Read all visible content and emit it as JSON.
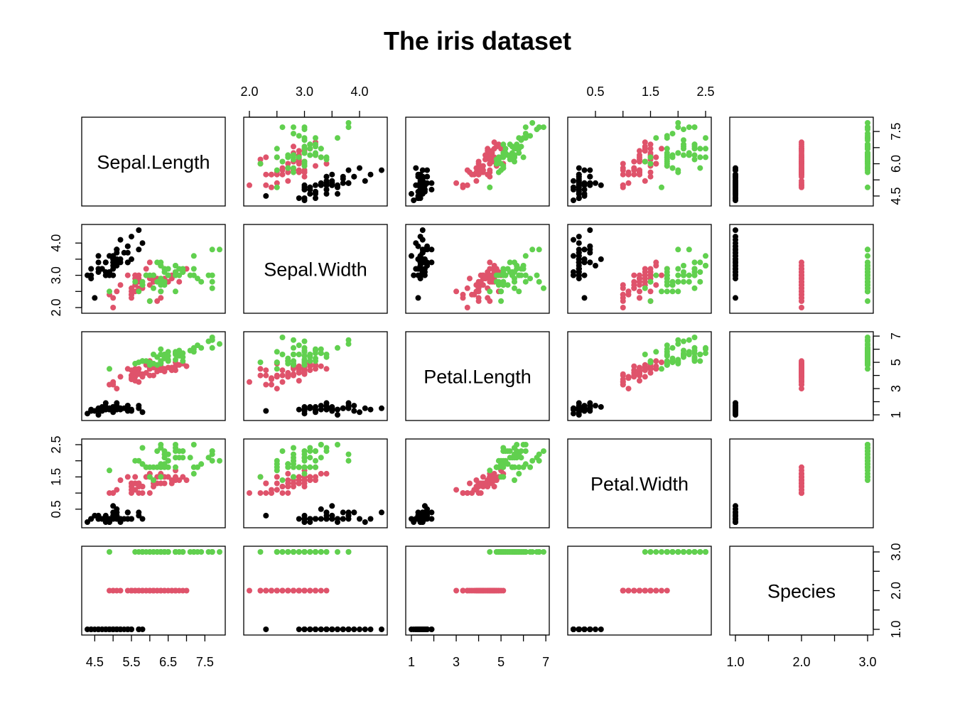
{
  "chart_data": {
    "type": "scatter",
    "subtype": "scatterplot-matrix",
    "title": "The iris dataset",
    "variables": [
      "Sepal.Length",
      "Sepal.Width",
      "Petal.Length",
      "Petal.Width",
      "Species"
    ],
    "colors": {
      "setosa": "#000000",
      "versicolor": "#DF536B",
      "virginica": "#61D04F"
    },
    "axes": {
      "Sepal.Length": {
        "range": [
          4.3,
          7.9
        ],
        "ticks": [
          "4.5",
          "5.5",
          "6.5",
          "7.5"
        ],
        "minor_ticks": [
          5.0,
          6.0,
          7.0
        ],
        "alt_ticks": [
          "4.5",
          "6.0",
          "7.5"
        ],
        "alt_minor_ticks": [
          5.25,
          6.75
        ]
      },
      "Sepal.Width": {
        "range": [
          2.0,
          4.4
        ],
        "ticks": [
          "2.0",
          "3.0",
          "4.0"
        ],
        "minor_ticks": [
          2.5,
          3.5
        ]
      },
      "Petal.Length": {
        "range": [
          1.0,
          6.9
        ],
        "ticks": [
          "1",
          "3",
          "5",
          "7"
        ],
        "minor_ticks": [
          2,
          4,
          6
        ]
      },
      "Petal.Width": {
        "range": [
          0.1,
          2.5
        ],
        "ticks": [
          "0.5",
          "1.5",
          "2.5"
        ],
        "minor_ticks": [
          1.0,
          2.0
        ]
      },
      "Species": {
        "range": [
          1,
          3
        ],
        "ticks": [
          "1.0",
          "2.0",
          "3.0"
        ],
        "minor_ticks": [
          1.5,
          2.5
        ]
      }
    },
    "fields": [
      "Sepal.Length",
      "Sepal.Width",
      "Petal.Length",
      "Petal.Width",
      "Species"
    ],
    "setosa": [
      [
        5.1,
        3.5,
        1.4,
        0.2
      ],
      [
        4.9,
        3.0,
        1.4,
        0.2
      ],
      [
        4.7,
        3.2,
        1.3,
        0.2
      ],
      [
        4.6,
        3.1,
        1.5,
        0.2
      ],
      [
        5.0,
        3.6,
        1.4,
        0.2
      ],
      [
        5.4,
        3.9,
        1.7,
        0.4
      ],
      [
        4.6,
        3.4,
        1.4,
        0.3
      ],
      [
        5.0,
        3.4,
        1.5,
        0.2
      ],
      [
        4.4,
        2.9,
        1.4,
        0.2
      ],
      [
        4.9,
        3.1,
        1.5,
        0.1
      ],
      [
        5.4,
        3.7,
        1.5,
        0.2
      ],
      [
        4.8,
        3.4,
        1.6,
        0.2
      ],
      [
        4.8,
        3.0,
        1.4,
        0.1
      ],
      [
        4.3,
        3.0,
        1.1,
        0.1
      ],
      [
        5.8,
        4.0,
        1.2,
        0.2
      ],
      [
        5.7,
        4.4,
        1.5,
        0.4
      ],
      [
        5.4,
        3.9,
        1.3,
        0.4
      ],
      [
        5.1,
        3.5,
        1.4,
        0.3
      ],
      [
        5.7,
        3.8,
        1.7,
        0.3
      ],
      [
        5.1,
        3.8,
        1.5,
        0.3
      ],
      [
        5.4,
        3.4,
        1.7,
        0.2
      ],
      [
        5.1,
        3.7,
        1.5,
        0.4
      ],
      [
        4.6,
        3.6,
        1.0,
        0.2
      ],
      [
        5.1,
        3.3,
        1.7,
        0.5
      ],
      [
        4.8,
        3.4,
        1.9,
        0.2
      ],
      [
        5.0,
        3.0,
        1.6,
        0.2
      ],
      [
        5.0,
        3.4,
        1.6,
        0.4
      ],
      [
        5.2,
        3.5,
        1.5,
        0.2
      ],
      [
        5.2,
        3.4,
        1.4,
        0.2
      ],
      [
        4.7,
        3.2,
        1.6,
        0.2
      ],
      [
        4.8,
        3.1,
        1.6,
        0.2
      ],
      [
        5.4,
        3.4,
        1.5,
        0.4
      ],
      [
        5.2,
        4.1,
        1.5,
        0.1
      ],
      [
        5.5,
        4.2,
        1.4,
        0.2
      ],
      [
        4.9,
        3.1,
        1.5,
        0.2
      ],
      [
        5.0,
        3.2,
        1.2,
        0.2
      ],
      [
        5.5,
        3.5,
        1.3,
        0.2
      ],
      [
        4.9,
        3.6,
        1.4,
        0.1
      ],
      [
        4.4,
        3.0,
        1.3,
        0.2
      ],
      [
        5.1,
        3.4,
        1.5,
        0.2
      ],
      [
        5.0,
        3.5,
        1.3,
        0.3
      ],
      [
        4.5,
        2.3,
        1.3,
        0.3
      ],
      [
        4.4,
        3.2,
        1.3,
        0.2
      ],
      [
        5.0,
        3.5,
        1.6,
        0.6
      ],
      [
        5.1,
        3.8,
        1.9,
        0.4
      ],
      [
        4.8,
        3.0,
        1.4,
        0.3
      ],
      [
        5.1,
        3.8,
        1.6,
        0.2
      ],
      [
        4.6,
        3.2,
        1.4,
        0.2
      ],
      [
        5.3,
        3.7,
        1.5,
        0.2
      ],
      [
        5.0,
        3.3,
        1.4,
        0.2
      ]
    ],
    "versicolor": [
      [
        7.0,
        3.2,
        4.7,
        1.4
      ],
      [
        6.4,
        3.2,
        4.5,
        1.5
      ],
      [
        6.9,
        3.1,
        4.9,
        1.5
      ],
      [
        5.5,
        2.3,
        4.0,
        1.3
      ],
      [
        6.5,
        2.8,
        4.6,
        1.5
      ],
      [
        5.7,
        2.8,
        4.5,
        1.3
      ],
      [
        6.3,
        3.3,
        4.7,
        1.6
      ],
      [
        4.9,
        2.4,
        3.3,
        1.0
      ],
      [
        6.6,
        2.9,
        4.6,
        1.3
      ],
      [
        5.2,
        2.7,
        3.9,
        1.4
      ],
      [
        5.0,
        2.0,
        3.5,
        1.0
      ],
      [
        5.9,
        3.0,
        4.2,
        1.5
      ],
      [
        6.0,
        2.2,
        4.0,
        1.0
      ],
      [
        6.1,
        2.9,
        4.7,
        1.4
      ],
      [
        5.6,
        2.9,
        3.6,
        1.3
      ],
      [
        6.7,
        3.1,
        4.4,
        1.4
      ],
      [
        5.6,
        3.0,
        4.5,
        1.5
      ],
      [
        5.8,
        2.7,
        4.1,
        1.0
      ],
      [
        6.2,
        2.2,
        4.5,
        1.5
      ],
      [
        5.6,
        2.5,
        3.9,
        1.1
      ],
      [
        5.9,
        3.2,
        4.8,
        1.8
      ],
      [
        6.1,
        2.8,
        4.0,
        1.3
      ],
      [
        6.3,
        2.5,
        4.9,
        1.5
      ],
      [
        6.1,
        2.8,
        4.7,
        1.2
      ],
      [
        6.4,
        2.9,
        4.3,
        1.3
      ],
      [
        6.6,
        3.0,
        4.4,
        1.4
      ],
      [
        6.8,
        2.8,
        4.8,
        1.4
      ],
      [
        6.7,
        3.0,
        5.0,
        1.7
      ],
      [
        6.0,
        2.9,
        4.5,
        1.5
      ],
      [
        5.7,
        2.6,
        3.5,
        1.0
      ],
      [
        5.5,
        2.4,
        3.8,
        1.1
      ],
      [
        5.5,
        2.4,
        3.7,
        1.0
      ],
      [
        5.8,
        2.7,
        3.9,
        1.2
      ],
      [
        6.0,
        2.7,
        5.1,
        1.6
      ],
      [
        5.4,
        3.0,
        4.5,
        1.5
      ],
      [
        6.0,
        3.4,
        4.5,
        1.6
      ],
      [
        6.7,
        3.1,
        4.7,
        1.5
      ],
      [
        6.3,
        2.3,
        4.4,
        1.3
      ],
      [
        5.6,
        3.0,
        4.1,
        1.3
      ],
      [
        5.5,
        2.5,
        4.0,
        1.3
      ],
      [
        5.5,
        2.6,
        4.4,
        1.2
      ],
      [
        6.1,
        3.0,
        4.6,
        1.4
      ],
      [
        5.8,
        2.6,
        4.0,
        1.2
      ],
      [
        5.0,
        2.3,
        3.3,
        1.0
      ],
      [
        5.6,
        2.7,
        4.2,
        1.3
      ],
      [
        5.7,
        3.0,
        4.2,
        1.2
      ],
      [
        5.7,
        2.9,
        4.2,
        1.3
      ],
      [
        6.2,
        2.9,
        4.3,
        1.3
      ],
      [
        5.1,
        2.5,
        3.0,
        1.1
      ],
      [
        5.7,
        2.8,
        4.1,
        1.3
      ]
    ],
    "virginica": [
      [
        6.3,
        3.3,
        6.0,
        2.5
      ],
      [
        5.8,
        2.7,
        5.1,
        1.9
      ],
      [
        7.1,
        3.0,
        5.9,
        2.1
      ],
      [
        6.3,
        2.9,
        5.6,
        1.8
      ],
      [
        6.5,
        3.0,
        5.8,
        2.2
      ],
      [
        7.6,
        3.0,
        6.6,
        2.1
      ],
      [
        4.9,
        2.5,
        4.5,
        1.7
      ],
      [
        7.3,
        2.9,
        6.3,
        1.8
      ],
      [
        6.7,
        2.5,
        5.8,
        1.8
      ],
      [
        7.2,
        3.6,
        6.1,
        2.5
      ],
      [
        6.5,
        3.2,
        5.1,
        2.0
      ],
      [
        6.4,
        2.7,
        5.3,
        1.9
      ],
      [
        6.8,
        3.0,
        5.5,
        2.1
      ],
      [
        5.7,
        2.5,
        5.0,
        2.0
      ],
      [
        5.8,
        2.8,
        5.1,
        2.4
      ],
      [
        6.4,
        3.2,
        5.3,
        2.3
      ],
      [
        6.5,
        3.0,
        5.5,
        1.8
      ],
      [
        7.7,
        3.8,
        6.7,
        2.2
      ],
      [
        7.7,
        2.6,
        6.9,
        2.3
      ],
      [
        6.0,
        2.2,
        5.0,
        1.5
      ],
      [
        6.9,
        3.2,
        5.7,
        2.3
      ],
      [
        5.6,
        2.8,
        4.9,
        2.0
      ],
      [
        7.7,
        2.8,
        6.7,
        2.0
      ],
      [
        6.3,
        2.7,
        4.9,
        1.8
      ],
      [
        6.7,
        3.3,
        5.7,
        2.1
      ],
      [
        7.2,
        3.2,
        6.0,
        1.8
      ],
      [
        6.2,
        2.8,
        4.8,
        1.8
      ],
      [
        6.1,
        3.0,
        4.9,
        1.8
      ],
      [
        6.4,
        2.8,
        5.6,
        2.1
      ],
      [
        7.2,
        3.0,
        5.8,
        1.6
      ],
      [
        7.4,
        2.8,
        6.1,
        1.9
      ],
      [
        7.9,
        3.8,
        6.4,
        2.0
      ],
      [
        6.4,
        2.8,
        5.6,
        2.2
      ],
      [
        6.3,
        2.8,
        5.1,
        1.5
      ],
      [
        6.1,
        2.6,
        5.6,
        1.4
      ],
      [
        7.7,
        3.0,
        6.1,
        2.3
      ],
      [
        6.3,
        3.4,
        5.6,
        2.4
      ],
      [
        6.4,
        3.1,
        5.5,
        1.8
      ],
      [
        6.0,
        3.0,
        4.8,
        1.8
      ],
      [
        6.9,
        3.1,
        5.4,
        2.1
      ],
      [
        6.7,
        3.1,
        5.6,
        2.4
      ],
      [
        6.9,
        3.1,
        5.1,
        2.3
      ],
      [
        5.8,
        2.7,
        5.1,
        1.9
      ],
      [
        6.8,
        3.2,
        5.9,
        2.3
      ],
      [
        6.7,
        3.3,
        5.7,
        2.5
      ],
      [
        6.7,
        3.0,
        5.2,
        2.3
      ],
      [
        6.3,
        2.5,
        5.0,
        1.9
      ],
      [
        6.5,
        3.0,
        5.2,
        2.0
      ],
      [
        6.2,
        3.4,
        5.4,
        2.3
      ],
      [
        5.9,
        3.0,
        5.1,
        1.8
      ]
    ]
  }
}
